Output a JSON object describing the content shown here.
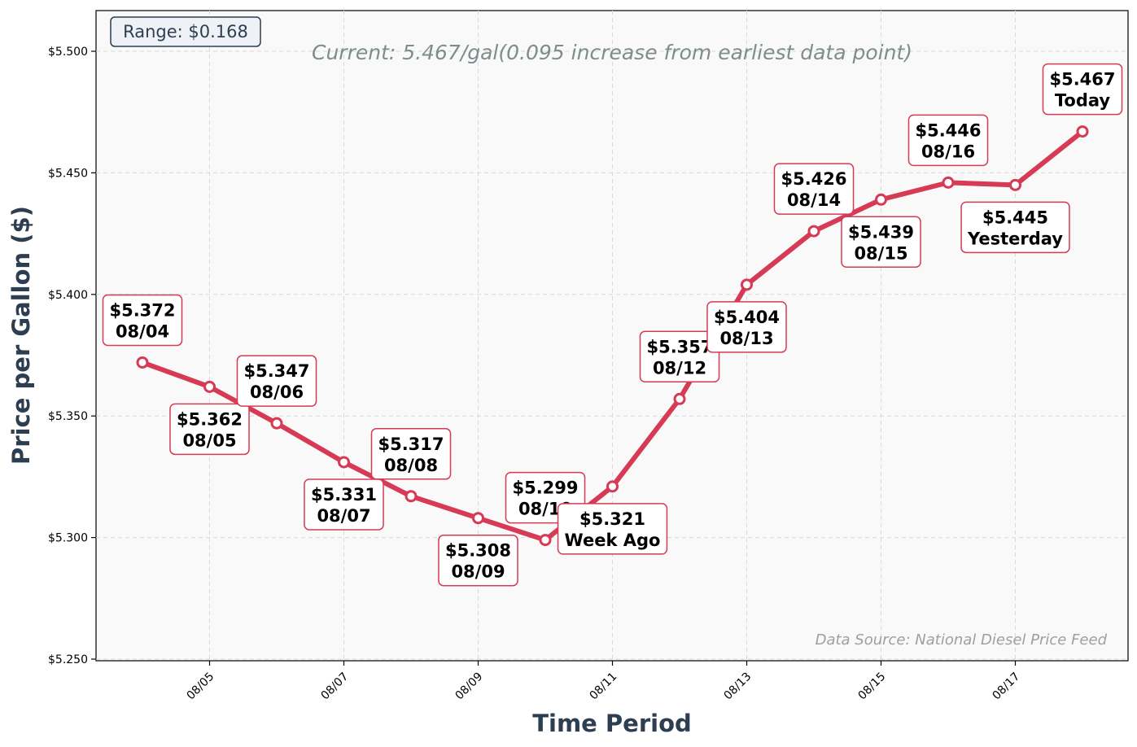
{
  "chart_data": {
    "type": "line",
    "xlabel": "Time Period",
    "ylabel": "Price per Gallon ($)",
    "ylim": [
      5.25,
      5.5
    ],
    "y_ticks": [
      "$5.250",
      "$5.300",
      "$5.350",
      "$5.400",
      "$5.450",
      "$5.500"
    ],
    "x_ticks": [
      "08/05",
      "08/07",
      "08/09",
      "08/11",
      "08/13",
      "08/15",
      "08/17"
    ],
    "grid": true,
    "line_color": "#d63a54",
    "points": [
      {
        "date": "08/04",
        "value": 5.372,
        "value_label": "$5.372",
        "name_label": "08/04",
        "label_pos": "above"
      },
      {
        "date": "08/05",
        "value": 5.362,
        "value_label": "$5.362",
        "name_label": "08/05",
        "label_pos": "below"
      },
      {
        "date": "08/06",
        "value": 5.347,
        "value_label": "$5.347",
        "name_label": "08/06",
        "label_pos": "above"
      },
      {
        "date": "08/07",
        "value": 5.331,
        "value_label": "$5.331",
        "name_label": "08/07",
        "label_pos": "below"
      },
      {
        "date": "08/08",
        "value": 5.317,
        "value_label": "$5.317",
        "name_label": "08/08",
        "label_pos": "above"
      },
      {
        "date": "08/09",
        "value": 5.308,
        "value_label": "$5.308",
        "name_label": "08/09",
        "label_pos": "below"
      },
      {
        "date": "08/10",
        "value": 5.299,
        "value_label": "$5.299",
        "name_label": "08/10",
        "label_pos": "above"
      },
      {
        "date": "08/11",
        "value": 5.321,
        "value_label": "$5.321",
        "name_label": "Week Ago",
        "label_pos": "below"
      },
      {
        "date": "08/12",
        "value": 5.357,
        "value_label": "$5.357",
        "name_label": "08/12",
        "label_pos": "above"
      },
      {
        "date": "08/13",
        "value": 5.404,
        "value_label": "$5.404",
        "name_label": "08/13",
        "label_pos": "below"
      },
      {
        "date": "08/14",
        "value": 5.426,
        "value_label": "$5.426",
        "name_label": "08/14",
        "label_pos": "above"
      },
      {
        "date": "08/15",
        "value": 5.439,
        "value_label": "$5.439",
        "name_label": "08/15",
        "label_pos": "below"
      },
      {
        "date": "08/16",
        "value": 5.446,
        "value_label": "$5.446",
        "name_label": "08/16",
        "label_pos": "above"
      },
      {
        "date": "08/17",
        "value": 5.445,
        "value_label": "$5.445",
        "name_label": "Yesterday",
        "label_pos": "below"
      },
      {
        "date": "08/18",
        "value": 5.467,
        "value_label": "$5.467",
        "name_label": "Today",
        "label_pos": "above"
      }
    ],
    "annotations": {
      "range": "Range: $0.168",
      "current": "Current: 5.467/gal(0.095 increase from earliest data point)",
      "source": "Data Source: National Diesel Price Feed"
    }
  }
}
